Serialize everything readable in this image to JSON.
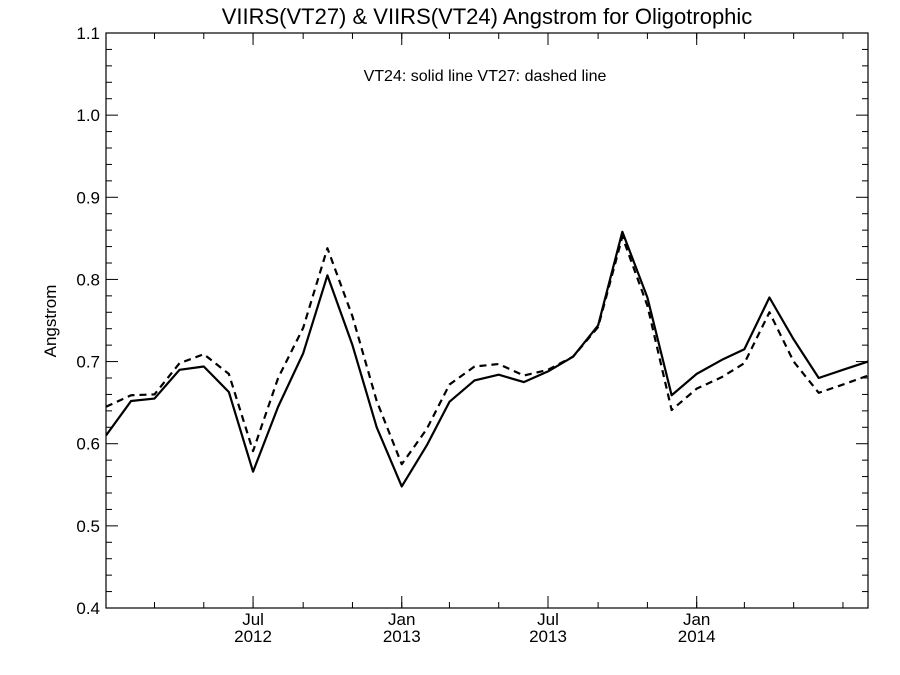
{
  "chart_data": {
    "type": "line",
    "title": "VIIRS(VT27) & VIIRS(VT24)  Angstrom for Oligotrophic",
    "xlabel": "",
    "ylabel": "Angstrom",
    "ylim": [
      0.4,
      1.1
    ],
    "yticks": [
      0.4,
      0.5,
      0.6,
      0.7,
      0.8,
      0.9,
      1.0,
      1.1
    ],
    "ytick_labels": [
      "0.4",
      "0.5",
      "0.6",
      "0.7",
      "0.8",
      "0.9",
      "1.0",
      "1.1"
    ],
    "xlim": [
      "2012-01-01",
      "2014-08-01"
    ],
    "xticks": [
      {
        "month": "Jul",
        "year": "2012",
        "date": "2012-07-01"
      },
      {
        "month": "Jan",
        "year": "2013",
        "date": "2013-01-01"
      },
      {
        "month": "Jul",
        "year": "2013",
        "date": "2013-07-01"
      },
      {
        "month": "Jan",
        "year": "2014",
        "date": "2014-01-01"
      }
    ],
    "annotation": "VT24: solid line   VT27: dashed line",
    "x": [
      "2012-01-01",
      "2012-02-01",
      "2012-03-01",
      "2012-04-01",
      "2012-05-01",
      "2012-06-01",
      "2012-07-01",
      "2012-08-01",
      "2012-09-01",
      "2012-10-01",
      "2012-11-01",
      "2012-12-01",
      "2013-01-01",
      "2013-02-01",
      "2013-03-01",
      "2013-04-01",
      "2013-05-01",
      "2013-06-01",
      "2013-07-01",
      "2013-08-01",
      "2013-09-01",
      "2013-10-01",
      "2013-11-01",
      "2013-12-01",
      "2014-01-01",
      "2014-02-01",
      "2014-03-01",
      "2014-04-01",
      "2014-05-01",
      "2014-06-01",
      "2014-07-01",
      "2014-08-01"
    ],
    "series": [
      {
        "name": "VT24",
        "style": "solid",
        "color": "#000000",
        "values": [
          0.61,
          0.652,
          0.655,
          0.69,
          0.694,
          0.663,
          0.566,
          0.645,
          0.71,
          0.805,
          0.72,
          0.62,
          0.548,
          0.598,
          0.651,
          0.677,
          0.684,
          0.675,
          0.688,
          0.706,
          0.744,
          0.858,
          0.778,
          0.659,
          0.685,
          0.702,
          0.715,
          0.778,
          0.727,
          0.68,
          0.69,
          0.7
        ]
      },
      {
        "name": "VT27",
        "style": "dashed",
        "color": "#000000",
        "values": [
          0.645,
          0.659,
          0.66,
          0.698,
          0.709,
          0.685,
          0.591,
          0.68,
          0.741,
          0.838,
          0.755,
          0.652,
          0.575,
          0.618,
          0.672,
          0.694,
          0.697,
          0.683,
          0.69,
          0.706,
          0.742,
          0.852,
          0.768,
          0.641,
          0.667,
          0.681,
          0.698,
          0.76,
          0.7,
          0.662,
          0.672,
          0.683
        ]
      }
    ]
  }
}
